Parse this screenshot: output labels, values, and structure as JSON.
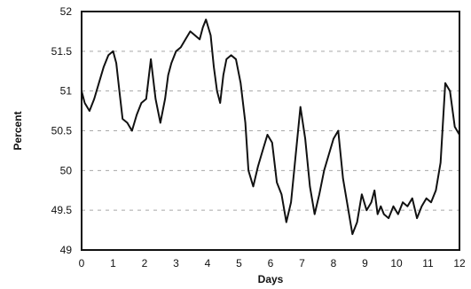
{
  "chart_data": {
    "type": "line",
    "title": "",
    "xlabel": "Days",
    "ylabel": "Percent",
    "xlim": [
      0,
      12
    ],
    "ylim": [
      49,
      52
    ],
    "xticks": [
      "0",
      "1",
      "2",
      "3",
      "4",
      "5",
      "6",
      "7",
      "8",
      "9",
      "10",
      "11",
      "12"
    ],
    "yticks": [
      "49",
      "49.5",
      "50",
      "50.5",
      "51",
      "51.5",
      "52"
    ],
    "grid": "horizontal dashed",
    "legend": "none",
    "line_color": "#111111",
    "series": [
      {
        "x": [
          0.0,
          0.1,
          0.25,
          0.4,
          0.55,
          0.7,
          0.85,
          1.0,
          1.1,
          1.2,
          1.3,
          1.45,
          1.6,
          1.75,
          1.9,
          2.05,
          2.2,
          2.35,
          2.5,
          2.65,
          2.75,
          2.85,
          3.0,
          3.15,
          3.3,
          3.45,
          3.6,
          3.75,
          3.85,
          3.95,
          4.1,
          4.2,
          4.3,
          4.4,
          4.5,
          4.6,
          4.75,
          4.9,
          5.05,
          5.2,
          5.3,
          5.45,
          5.6,
          5.75,
          5.9,
          6.05,
          6.2,
          6.35,
          6.5,
          6.65,
          6.8,
          6.95,
          7.1,
          7.25,
          7.4,
          7.55,
          7.7,
          7.85,
          8.0,
          8.15,
          8.3,
          8.45,
          8.6,
          8.75,
          8.9,
          9.05,
          9.2,
          9.3,
          9.4,
          9.5,
          9.6,
          9.75,
          9.9,
          10.05,
          10.2,
          10.35,
          10.5,
          10.65,
          10.8,
          10.95,
          11.1,
          11.25,
          11.4,
          11.55,
          11.7,
          11.85,
          12.0
        ],
        "y": [
          51.0,
          50.85,
          50.75,
          50.9,
          51.1,
          51.3,
          51.45,
          51.5,
          51.35,
          51.0,
          50.65,
          50.6,
          50.5,
          50.7,
          50.85,
          50.9,
          51.4,
          50.9,
          50.6,
          50.9,
          51.2,
          51.35,
          51.5,
          51.55,
          51.65,
          51.75,
          51.7,
          51.65,
          51.8,
          51.9,
          51.7,
          51.3,
          51.0,
          50.85,
          51.2,
          51.4,
          51.45,
          51.4,
          51.1,
          50.6,
          50.0,
          49.8,
          50.05,
          50.25,
          50.45,
          50.35,
          49.85,
          49.7,
          49.35,
          49.6,
          50.2,
          50.8,
          50.4,
          49.8,
          49.45,
          49.7,
          50.0,
          50.2,
          50.4,
          50.5,
          49.9,
          49.55,
          49.2,
          49.35,
          49.7,
          49.5,
          49.6,
          49.75,
          49.45,
          49.55,
          49.45,
          49.4,
          49.55,
          49.45,
          49.6,
          49.55,
          49.65,
          49.4,
          49.55,
          49.65,
          49.6,
          49.75,
          50.1,
          51.1,
          51.0,
          50.55,
          50.45
        ]
      }
    ]
  }
}
